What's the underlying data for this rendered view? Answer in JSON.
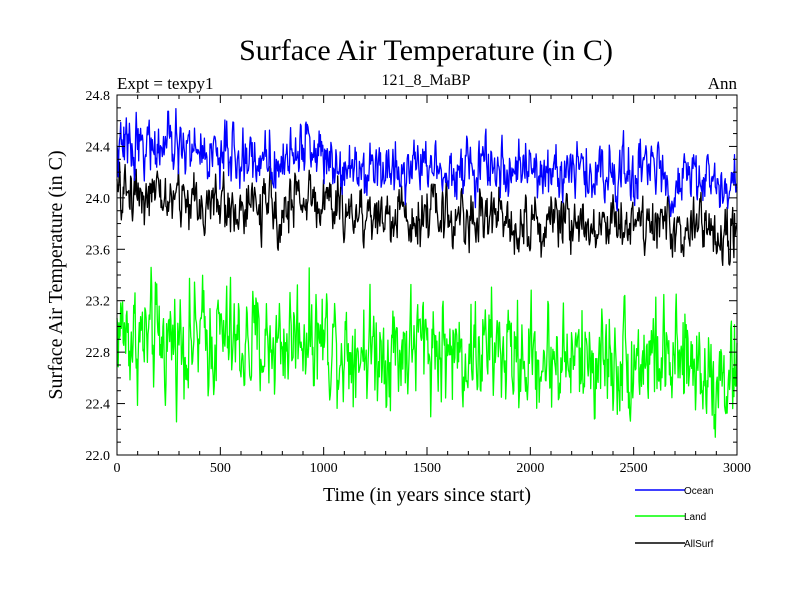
{
  "chart_data": {
    "type": "line",
    "title": "Surface Air Temperature (in C)",
    "subtitle_left": "Expt = texpy1",
    "subtitle_center": "121_8_MaBP",
    "subtitle_right": "Ann",
    "xlabel": "Time (in years since start)",
    "ylabel": "Surface Air Temperature (in C)",
    "xlim": [
      0,
      3000
    ],
    "ylim": [
      22.0,
      24.8
    ],
    "xticks": [
      0,
      500,
      1000,
      1500,
      2000,
      2500,
      3000
    ],
    "xtick_labels": [
      "0",
      "500",
      "1000",
      "1500",
      "2000",
      "2500",
      "3000"
    ],
    "yticks": [
      22.0,
      22.4,
      22.8,
      23.2,
      23.6,
      24.0,
      24.4,
      24.8
    ],
    "ytick_labels": [
      "22.0",
      "22.4",
      "22.8",
      "23.2",
      "23.6",
      "24.0",
      "24.4",
      "24.8"
    ],
    "legend_position": "bottom-right",
    "grid": false,
    "series": [
      {
        "name": "Ocean",
        "color": "#0000ff",
        "noise": 0.1,
        "x": [
          0,
          100,
          200,
          300,
          400,
          500,
          600,
          700,
          800,
          900,
          1000,
          1100,
          1200,
          1300,
          1400,
          1500,
          1600,
          1700,
          1800,
          1900,
          2000,
          2100,
          2200,
          2300,
          2400,
          2500,
          2600,
          2700,
          2800,
          2900,
          3000
        ],
        "y": [
          24.35,
          24.45,
          24.38,
          24.4,
          24.36,
          24.33,
          24.3,
          24.32,
          24.28,
          24.42,
          24.35,
          24.28,
          24.26,
          24.22,
          24.24,
          24.27,
          24.24,
          24.22,
          24.25,
          24.24,
          24.18,
          24.2,
          24.22,
          24.18,
          24.2,
          24.2,
          24.22,
          24.12,
          24.16,
          24.1,
          24.12
        ]
      },
      {
        "name": "Land",
        "color": "#00ff00",
        "noise": 0.19,
        "x": [
          0,
          100,
          200,
          300,
          400,
          500,
          600,
          700,
          800,
          900,
          1000,
          1100,
          1200,
          1300,
          1400,
          1500,
          1600,
          1700,
          1800,
          1900,
          2000,
          2100,
          2200,
          2300,
          2400,
          2500,
          2600,
          2700,
          2800,
          2900,
          3000
        ],
        "y": [
          23.0,
          22.9,
          22.88,
          22.92,
          22.9,
          22.92,
          22.84,
          22.86,
          22.88,
          22.98,
          22.92,
          22.85,
          22.84,
          22.82,
          22.84,
          22.88,
          22.8,
          22.8,
          22.82,
          22.78,
          22.74,
          22.76,
          22.74,
          22.75,
          22.74,
          22.76,
          22.78,
          22.68,
          22.72,
          22.62,
          22.64
        ]
      },
      {
        "name": "AllSurf",
        "color": "#000000",
        "noise": 0.1,
        "x": [
          0,
          100,
          200,
          300,
          400,
          500,
          600,
          700,
          800,
          900,
          1000,
          1100,
          1200,
          1300,
          1400,
          1500,
          1600,
          1700,
          1800,
          1900,
          2000,
          2100,
          2200,
          2300,
          2400,
          2500,
          2600,
          2700,
          2800,
          2900,
          3000
        ],
        "y": [
          24.0,
          24.08,
          23.98,
          24.0,
          23.96,
          23.95,
          23.9,
          23.92,
          23.9,
          24.02,
          23.96,
          23.9,
          23.88,
          23.85,
          23.86,
          23.9,
          23.86,
          23.84,
          23.86,
          23.84,
          23.8,
          23.82,
          23.84,
          23.8,
          23.82,
          23.82,
          23.84,
          23.72,
          23.78,
          23.7,
          23.74
        ]
      }
    ]
  }
}
